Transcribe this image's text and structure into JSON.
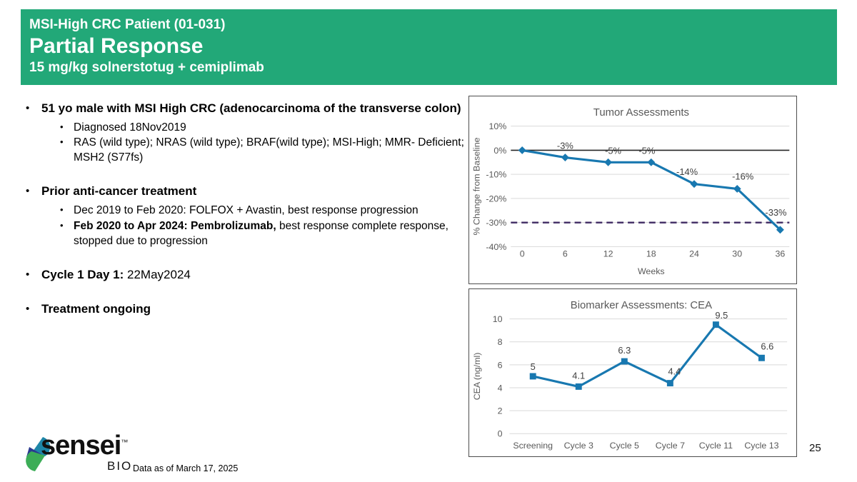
{
  "slide": {
    "header": {
      "kicker": "MSI-High CRC Patient (01-031)",
      "title": "Partial Response",
      "subtitle": "15 mg/kg solnerstotug + cemiplimab",
      "bg_color": "#22A878"
    },
    "bullets": [
      {
        "segments": [
          {
            "text": "51 yo male with MSI High CRC (adenocarcinoma of the transverse colon)",
            "bold": true
          }
        ],
        "children": [
          {
            "segments": [
              {
                "text": "Diagnosed 18Nov2019",
                "bold": false
              }
            ]
          },
          {
            "segments": [
              {
                "text": "RAS (wild type); NRAS (wild type); BRAF(wild type); MSI-High; MMR- Deficient; MSH2 (S77fs)",
                "bold": false
              }
            ]
          }
        ]
      },
      {
        "segments": [
          {
            "text": "Prior anti-cancer treatment",
            "bold": true
          }
        ],
        "children": [
          {
            "segments": [
              {
                "text": "Dec 2019 to Feb 2020: FOLFOX + Avastin, best response progression",
                "bold": false
              }
            ]
          },
          {
            "segments": [
              {
                "text": "Feb 2020 to Apr 2024: Pembrolizumab,",
                "bold": true
              },
              {
                "text": " best response complete response, stopped due to progression",
                "bold": false
              }
            ]
          }
        ]
      },
      {
        "segments": [
          {
            "text": "Cycle 1 Day 1: ",
            "bold": true
          },
          {
            "text": "22May2024",
            "bold": false
          }
        ],
        "children": []
      },
      {
        "segments": [
          {
            "text": "Treatment ongoing",
            "bold": true
          }
        ],
        "children": []
      }
    ],
    "footer": {
      "logo_text": "sensei",
      "logo_tm": "™",
      "logo_sub": "BIO",
      "logo_icon": "sensei-s-logo-icon",
      "data_note": "Data as of March 17, 2025",
      "page_number": "25"
    }
  },
  "chart_data": [
    {
      "type": "line",
      "title": "Tumor Assessments",
      "xlabel": "Weeks",
      "ylabel": "% Change from Baseline",
      "x": [
        0,
        6,
        12,
        18,
        24,
        30,
        36
      ],
      "values": [
        0,
        -3,
        -5,
        -5,
        -14,
        -16,
        -33
      ],
      "point_labels": [
        "",
        "-3%",
        "-5%",
        "-5%",
        "-14%",
        "-16%",
        "-33%"
      ],
      "xticks": [
        0,
        6,
        12,
        18,
        24,
        30,
        36
      ],
      "ylim": [
        -40,
        10
      ],
      "ytick_step": 10,
      "ytick_format": "percent",
      "grid": true,
      "zero_line": true,
      "reference_line": {
        "y": -30,
        "style": "dashed",
        "color": "#3F2A63"
      },
      "line_color": "#1878B0",
      "marker": "diamond",
      "legend": "none"
    },
    {
      "type": "line",
      "title": "Biomarker Assessments: CEA",
      "xlabel": "",
      "ylabel": "CEA (ng/ml)",
      "categories": [
        "Screening",
        "Cycle 3",
        "Cycle 5",
        "Cycle 7",
        "Cycle 11",
        "Cycle 13"
      ],
      "values": [
        5,
        4.1,
        6.3,
        4.4,
        9.5,
        6.6
      ],
      "point_labels": [
        "5",
        "4.1",
        "6.3",
        "4.4",
        "9.5",
        "6.6"
      ],
      "ylim": [
        0,
        10
      ],
      "ytick_step": 2,
      "grid": true,
      "zero_line": false,
      "line_color": "#1878B0",
      "marker": "square",
      "legend": "none"
    }
  ],
  "chart_text_colors": {
    "axis": "#595959",
    "point_label": "#404040",
    "grid": "#D9D9D9"
  }
}
